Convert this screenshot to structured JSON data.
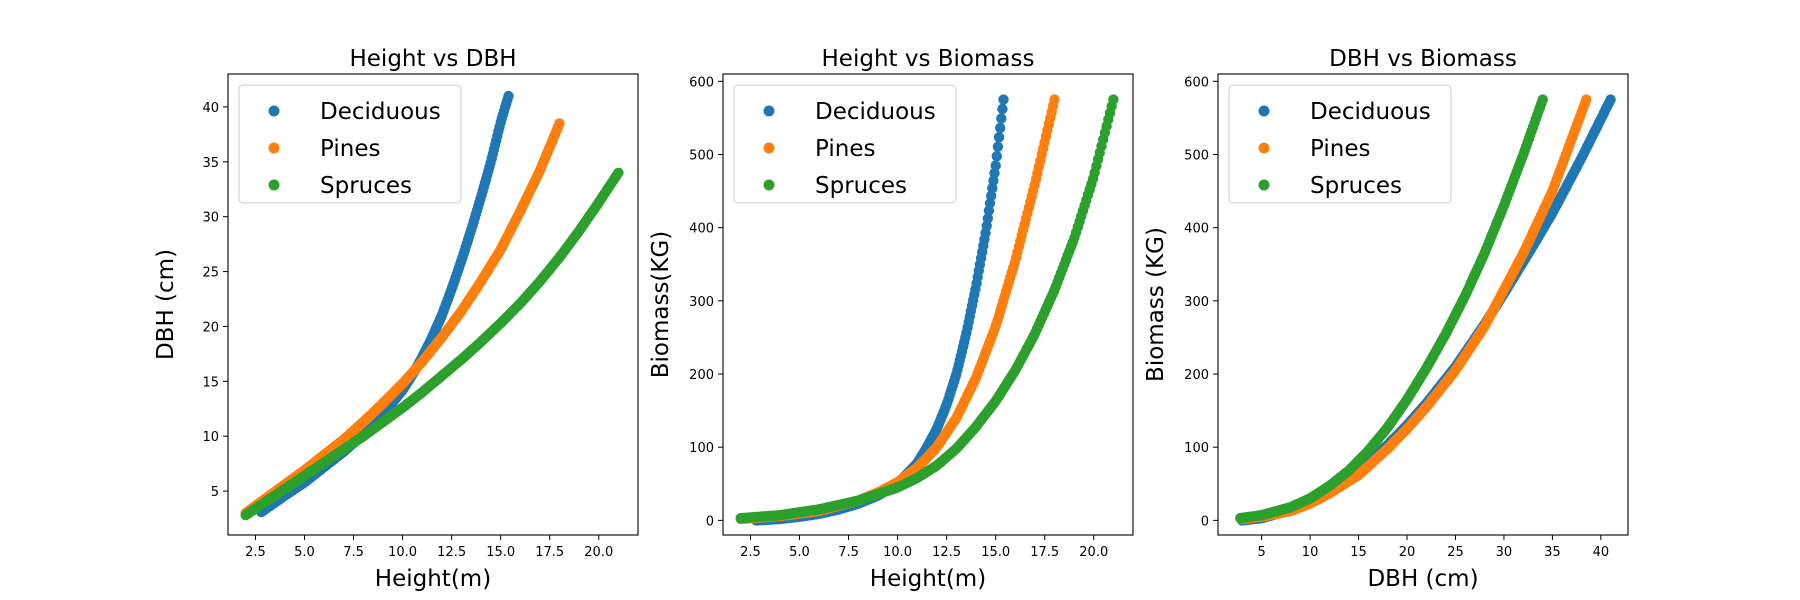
{
  "colors": {
    "Deciduous": "#1f77b4",
    "Pines": "#ff7f0e",
    "Spruces": "#2ca02c"
  },
  "chart_data": [
    {
      "type": "scatter",
      "title": "Height vs DBH",
      "xlabel": "Height(m)",
      "ylabel": "DBH (cm)",
      "xlim": [
        1.1,
        22.0
      ],
      "ylim": [
        1.0,
        43.0
      ],
      "xticks": [
        2.5,
        5.0,
        7.5,
        10.0,
        12.5,
        15.0,
        17.5,
        20.0
      ],
      "xtick_labels": [
        "2.5",
        "5.0",
        "7.5",
        "10.0",
        "12.5",
        "15.0",
        "17.5",
        "20.0"
      ],
      "yticks": [
        5,
        10,
        15,
        20,
        25,
        30,
        35,
        40
      ],
      "ytick_labels": [
        "5",
        "10",
        "15",
        "20",
        "25",
        "30",
        "35",
        "40"
      ],
      "grid": false,
      "legend": "upper-left",
      "series": [
        {
          "name": "Deciduous",
          "x": [
            2.8,
            4.0,
            5.0,
            6.0,
            7.0,
            8.0,
            9.0,
            10.0,
            10.5,
            11.0,
            11.5,
            12.0,
            12.5,
            13.0,
            13.5,
            14.0,
            14.5,
            15.0,
            15.4
          ],
          "y": [
            3.1,
            4.6,
            5.8,
            7.2,
            8.6,
            10.2,
            12.0,
            14.2,
            15.6,
            17.2,
            19.0,
            21.0,
            23.4,
            26.0,
            28.8,
            31.8,
            35.0,
            38.6,
            41.0
          ]
        },
        {
          "name": "Pines",
          "x": [
            2.0,
            3.0,
            4.0,
            5.0,
            6.0,
            7.0,
            8.0,
            9.0,
            10.0,
            11.0,
            12.0,
            13.0,
            14.0,
            15.0,
            16.0,
            17.0,
            18.0
          ],
          "y": [
            3.0,
            4.3,
            5.6,
            6.9,
            8.3,
            9.7,
            11.3,
            13.0,
            14.8,
            16.8,
            19.0,
            21.4,
            24.1,
            27.0,
            30.5,
            34.2,
            38.5
          ]
        },
        {
          "name": "Spruces",
          "x": [
            2.0,
            3.0,
            4.0,
            5.0,
            6.0,
            7.0,
            8.0,
            9.0,
            10.0,
            11.0,
            12.0,
            13.0,
            14.0,
            15.0,
            16.0,
            17.0,
            18.0,
            19.0,
            20.0,
            21.0
          ],
          "y": [
            2.8,
            4.0,
            5.2,
            6.4,
            7.6,
            8.8,
            10.0,
            11.3,
            12.6,
            14.0,
            15.5,
            17.0,
            18.6,
            20.3,
            22.1,
            24.1,
            26.3,
            28.7,
            31.3,
            34.0
          ]
        }
      ]
    },
    {
      "type": "scatter",
      "title": "Height vs Biomass",
      "xlabel": "Height(m)",
      "ylabel": "Biomass(KG)",
      "xlim": [
        1.1,
        22.0
      ],
      "ylim": [
        -20,
        610
      ],
      "xticks": [
        2.5,
        5.0,
        7.5,
        10.0,
        12.5,
        15.0,
        17.5,
        20.0
      ],
      "xtick_labels": [
        "2.5",
        "5.0",
        "7.5",
        "10.0",
        "12.5",
        "15.0",
        "17.5",
        "20.0"
      ],
      "yticks": [
        0,
        100,
        200,
        300,
        400,
        500,
        600
      ],
      "ytick_labels": [
        "0",
        "100",
        "200",
        "300",
        "400",
        "500",
        "600"
      ],
      "grid": false,
      "legend": "upper-left",
      "series": [
        {
          "name": "Deciduous",
          "x": [
            2.8,
            4.0,
            5.0,
            6.0,
            7.0,
            8.0,
            9.0,
            10.0,
            11.0,
            11.5,
            12.0,
            12.5,
            13.0,
            13.5,
            14.0,
            14.5,
            15.0,
            15.4
          ],
          "y": [
            0,
            2,
            5,
            9,
            15,
            23,
            34,
            50,
            78,
            100,
            125,
            158,
            200,
            255,
            320,
            395,
            485,
            575
          ]
        },
        {
          "name": "Pines",
          "x": [
            2.0,
            4.0,
            6.0,
            8.0,
            9.0,
            10.0,
            11.0,
            12.0,
            13.0,
            14.0,
            15.0,
            16.0,
            17.0,
            18.0
          ],
          "y": [
            2,
            6,
            13,
            27,
            38,
            52,
            72,
            100,
            140,
            195,
            265,
            355,
            460,
            575
          ]
        },
        {
          "name": "Spruces",
          "x": [
            2.0,
            4.0,
            6.0,
            8.0,
            10.0,
            11.0,
            12.0,
            13.0,
            14.0,
            15.0,
            16.0,
            17.0,
            18.0,
            19.0,
            20.0,
            21.0
          ],
          "y": [
            3,
            7,
            15,
            27,
            45,
            58,
            75,
            98,
            128,
            163,
            205,
            255,
            315,
            385,
            470,
            575
          ]
        }
      ]
    },
    {
      "type": "scatter",
      "title": "DBH vs Biomass",
      "xlabel": "DBH (cm)",
      "ylabel": "Biomass (KG)",
      "xlim": [
        0.5,
        42.8
      ],
      "ylim": [
        -20,
        610
      ],
      "xticks": [
        5,
        10,
        15,
        20,
        25,
        30,
        35,
        40
      ],
      "xtick_labels": [
        "5",
        "10",
        "15",
        "20",
        "25",
        "30",
        "35",
        "40"
      ],
      "yticks": [
        0,
        100,
        200,
        300,
        400,
        500,
        600
      ],
      "ytick_labels": [
        "0",
        "100",
        "200",
        "300",
        "400",
        "500",
        "600"
      ],
      "grid": false,
      "legend": "upper-left",
      "series": [
        {
          "name": "Deciduous",
          "x": [
            3.0,
            5.0,
            8.0,
            10.0,
            12.0,
            15.0,
            18.0,
            20.0,
            22.0,
            25.0,
            28.0,
            30.0,
            33.0,
            35.0,
            38.0,
            41.0
          ],
          "y": [
            0,
            3,
            14,
            25,
            40,
            68,
            103,
            130,
            160,
            210,
            268,
            310,
            375,
            420,
            495,
            575
          ]
        },
        {
          "name": "Pines",
          "x": [
            3.0,
            5.0,
            8.0,
            10.0,
            12.0,
            15.0,
            18.0,
            20.0,
            22.0,
            25.0,
            28.0,
            30.0,
            32.0,
            35.0,
            38.5
          ],
          "y": [
            2,
            5,
            13,
            23,
            37,
            62,
            98,
            125,
            155,
            205,
            265,
            315,
            365,
            450,
            575
          ]
        },
        {
          "name": "Spruces",
          "x": [
            2.8,
            5.0,
            8.0,
            10.0,
            12.0,
            14.0,
            16.0,
            18.0,
            20.0,
            22.0,
            24.0,
            26.0,
            28.0,
            30.0,
            32.0,
            34.0
          ],
          "y": [
            3,
            7,
            18,
            30,
            47,
            68,
            95,
            127,
            165,
            208,
            255,
            307,
            365,
            430,
            500,
            575
          ]
        }
      ]
    }
  ]
}
